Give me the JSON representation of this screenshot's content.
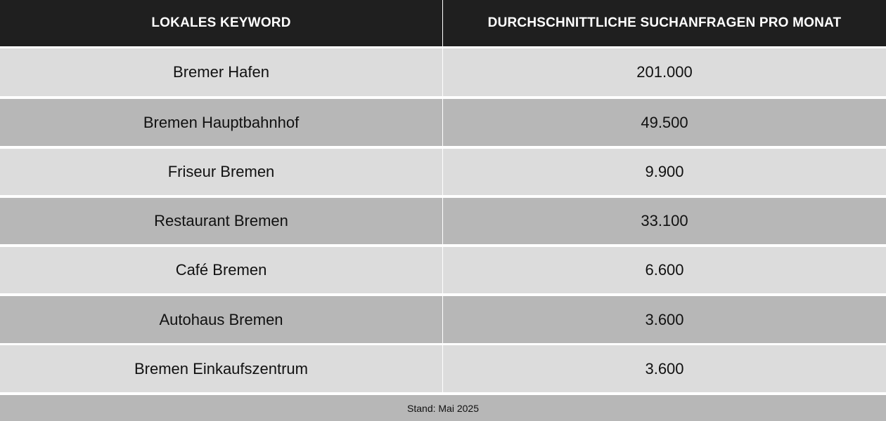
{
  "chart_data": {
    "type": "table",
    "headers": [
      "LOKALES KEYWORD",
      "DURCHSCHNITTLICHE SUCHANFRAGEN PRO MONAT"
    ],
    "rows": [
      {
        "keyword": "Bremer Hafen",
        "searches": "201.000"
      },
      {
        "keyword": "Bremen Hauptbahnhof",
        "searches": "49.500"
      },
      {
        "keyword": "Friseur Bremen",
        "searches": "9.900"
      },
      {
        "keyword": "Restaurant Bremen",
        "searches": "33.100"
      },
      {
        "keyword": "Café Bremen",
        "searches": "6.600"
      },
      {
        "keyword": "Autohaus Bremen",
        "searches": "3.600"
      },
      {
        "keyword": "Bremen Einkaufszentrum",
        "searches": "3.600"
      }
    ],
    "values": [
      201000,
      49500,
      9900,
      33100,
      6600,
      3600,
      3600
    ],
    "footnote": "Stand: Mai 2025"
  },
  "colors": {
    "header_bg": "#1f1f1f",
    "header_text": "#ffffff",
    "row_light": "#dcdcdc",
    "row_dark": "#b7b7b7"
  }
}
